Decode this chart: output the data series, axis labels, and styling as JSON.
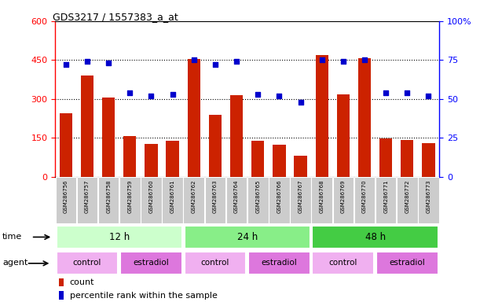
{
  "title": "GDS3217 / 1557383_a_at",
  "samples": [
    "GSM286756",
    "GSM286757",
    "GSM286758",
    "GSM286759",
    "GSM286760",
    "GSM286761",
    "GSM286762",
    "GSM286763",
    "GSM286764",
    "GSM286765",
    "GSM286766",
    "GSM286767",
    "GSM286768",
    "GSM286769",
    "GSM286770",
    "GSM286771",
    "GSM286772",
    "GSM286773"
  ],
  "counts": [
    245,
    390,
    305,
    158,
    125,
    138,
    455,
    240,
    315,
    138,
    122,
    80,
    468,
    318,
    458,
    148,
    142,
    130
  ],
  "percentiles": [
    72,
    74,
    73,
    54,
    52,
    53,
    75,
    72,
    74,
    53,
    52,
    48,
    75,
    74,
    75,
    54,
    54,
    52
  ],
  "ylim_left": [
    0,
    600
  ],
  "ylim_right": [
    0,
    100
  ],
  "yticks_left": [
    0,
    150,
    300,
    450,
    600
  ],
  "yticks_right": [
    0,
    25,
    50,
    75,
    100
  ],
  "bar_color": "#cc2200",
  "dot_color": "#0000cc",
  "bg_color": "#ffffff",
  "hline_values": [
    150,
    300,
    450
  ],
  "time_groups": [
    {
      "label": "12 h",
      "start": 0,
      "end": 6,
      "color": "#ccffcc"
    },
    {
      "label": "24 h",
      "start": 6,
      "end": 12,
      "color": "#88ee88"
    },
    {
      "label": "48 h",
      "start": 12,
      "end": 18,
      "color": "#44cc44"
    }
  ],
  "agent_groups": [
    {
      "label": "control",
      "start": 0,
      "end": 3,
      "color": "#f0b0f0"
    },
    {
      "label": "estradiol",
      "start": 3,
      "end": 6,
      "color": "#dd77dd"
    },
    {
      "label": "control",
      "start": 6,
      "end": 9,
      "color": "#f0b0f0"
    },
    {
      "label": "estradiol",
      "start": 9,
      "end": 12,
      "color": "#dd77dd"
    },
    {
      "label": "control",
      "start": 12,
      "end": 15,
      "color": "#f0b0f0"
    },
    {
      "label": "estradiol",
      "start": 15,
      "end": 18,
      "color": "#dd77dd"
    }
  ],
  "time_label": "time",
  "agent_label": "agent",
  "legend_count_label": "count",
  "legend_pct_label": "percentile rank within the sample",
  "tick_label_bg": "#cccccc"
}
